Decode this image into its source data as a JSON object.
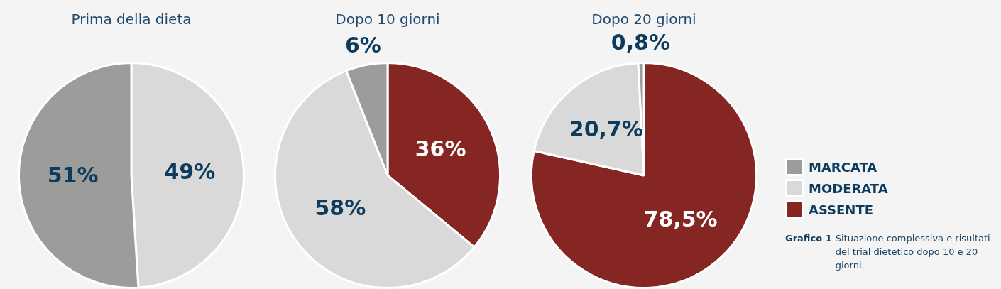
{
  "chart_data": [
    {
      "type": "pie",
      "title": "Prima della dieta",
      "categories": [
        null,
        null
      ],
      "values": [
        51,
        49
      ],
      "colors": [
        "#9c9c9b",
        "#d9d9d9"
      ],
      "value_labels": [
        "51%",
        "49%"
      ]
    },
    {
      "type": "pie",
      "title": "Dopo 10 giorni",
      "categories": [
        null,
        null,
        null
      ],
      "values": [
        6,
        58,
        36
      ],
      "colors": [
        "#9c9c9b",
        "#d9d9d9",
        "#862623"
      ],
      "value_labels": [
        "6%",
        "58%",
        "36%"
      ]
    },
    {
      "type": "pie",
      "title": "Dopo 20 giorni",
      "categories": [
        "MARCATA",
        "MODERATA",
        "ASSENTE"
      ],
      "values": [
        0.8,
        20.7,
        78.5
      ],
      "colors": [
        "#9c9c9b",
        "#d9d9d9",
        "#862623"
      ],
      "value_labels": [
        "0,8%",
        "20,7%",
        "78,5%"
      ],
      "legend": "right",
      "annotations": [
        "Grafico 1",
        "Situazione complessiva e risultati del trial dietetico dopo 10 e 20 giorni."
      ]
    }
  ]
}
